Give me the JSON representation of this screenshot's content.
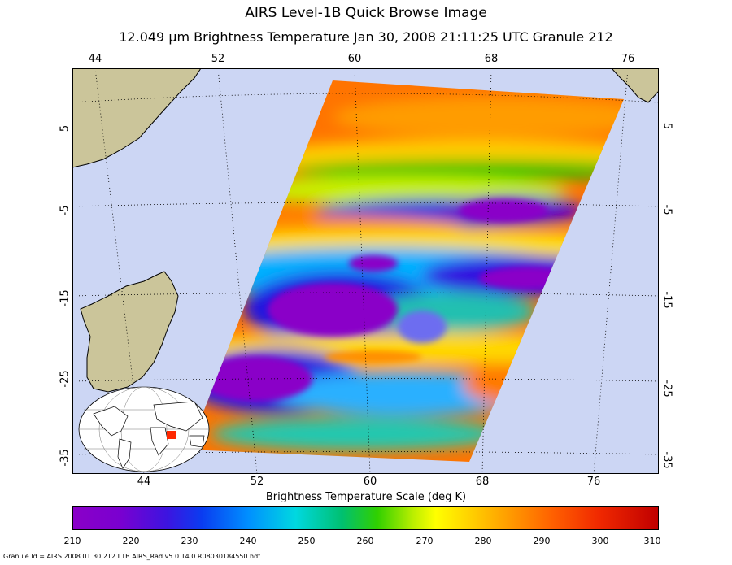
{
  "header": {
    "title": "AIRS Level-1B Quick Browse Image",
    "subtitle": "12.049 μm Brightness Temperature    Jan 30, 2008 21:11:25 UTC  Granule 212"
  },
  "map": {
    "lon_labels": [
      "44",
      "52",
      "60",
      "68",
      "76"
    ],
    "lat_labels": [
      "5",
      "-5",
      "-15",
      "-25",
      "-35"
    ],
    "lon_range": [
      42,
      80
    ],
    "lat_range": [
      10,
      -37
    ],
    "colors": {
      "ocean": "#ccd6f4",
      "land": "#cbc59a",
      "grid": "#000000"
    },
    "land_regions": [
      "Horn of Africa",
      "Madagascar",
      "India"
    ],
    "inset": "world-globe-locator"
  },
  "colorbar": {
    "title": "Brightness Temperature Scale (deg K)",
    "ticks": [
      "210",
      "220",
      "230",
      "240",
      "250",
      "260",
      "270",
      "280",
      "290",
      "300",
      "310"
    ],
    "min": 210,
    "max": 310
  },
  "footer": {
    "granule_id": "Granule Id = AIRS.2008.01.30.212.L1B.AIRS_Rad.v5.0.14.0.R08030184550.hdf"
  }
}
